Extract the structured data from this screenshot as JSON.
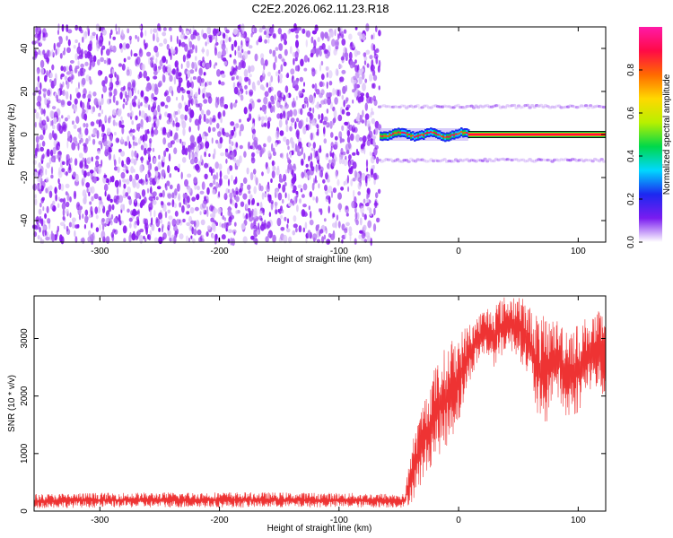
{
  "figure": {
    "title": "C2E2.2026.062.11.23.R18"
  },
  "chart_data": [
    {
      "type": "heatmap",
      "xlabel": "Height of straight line (km)",
      "ylabel": "Frequency (Hz)",
      "xlim": [
        -355,
        123
      ],
      "ylim": [
        -50,
        50
      ],
      "xticks": [
        -300,
        -200,
        -100,
        0,
        100
      ],
      "yticks": [
        -40,
        -20,
        0,
        20,
        40
      ],
      "colorbar": {
        "label": "Normalized spectral amplitude",
        "range": [
          0,
          1
        ],
        "ticks": [
          "0.0",
          "0.2",
          "0.4",
          "0.6",
          "0.8"
        ],
        "colors": [
          "#ffffff",
          "#7a1cf0",
          "#1c28f0",
          "#00d8ff",
          "#00d84a",
          "#b8f000",
          "#ffd800",
          "#ff6a00",
          "#ff0a46",
          "#ff1aa8"
        ]
      },
      "regions": [
        {
          "label": "noise scatter",
          "x_range": [
            -355,
            -66
          ],
          "freq_range": [
            -50,
            50
          ],
          "amplitude": [
            0.05,
            0.2
          ]
        },
        {
          "label": "main line (transition)",
          "x_range": [
            -66,
            8
          ],
          "freq_center": 0,
          "amplitude": 0.9
        },
        {
          "label": "main line",
          "x_range": [
            8,
            123
          ],
          "freq_center": 0,
          "amplitude": 0.85
        },
        {
          "label": "sidebands",
          "x_range": [
            -66,
            123
          ],
          "freq_center": [
            13,
            -12
          ],
          "amplitude": 0.1
        }
      ]
    },
    {
      "type": "line",
      "xlabel": "Height of straight line (km)",
      "ylabel": "SNR (10 * v/v)",
      "xlim": [
        -355,
        123
      ],
      "ylim": [
        0,
        3740
      ],
      "xticks": [
        -300,
        -200,
        -100,
        0,
        100
      ],
      "yticks": [
        0,
        1000,
        2000,
        3000
      ],
      "color": "#ee3333",
      "envelope": {
        "x": [
          -355,
          -300,
          -200,
          -100,
          -45,
          -40,
          -30,
          -20,
          -10,
          0,
          10,
          20,
          30,
          40,
          50,
          60,
          70,
          80,
          90,
          100,
          110,
          123
        ],
        "upper": [
          300,
          320,
          330,
          320,
          300,
          1100,
          1900,
          2500,
          2900,
          3100,
          3300,
          3500,
          3650,
          3750,
          3800,
          3550,
          3400,
          3350,
          3300,
          3250,
          3450,
          3500
        ],
        "lower": [
          50,
          60,
          60,
          60,
          60,
          120,
          500,
          900,
          1100,
          1500,
          2300,
          2700,
          2500,
          2800,
          2700,
          2200,
          1200,
          2100,
          1500,
          1700,
          2100,
          1900
        ]
      }
    }
  ]
}
